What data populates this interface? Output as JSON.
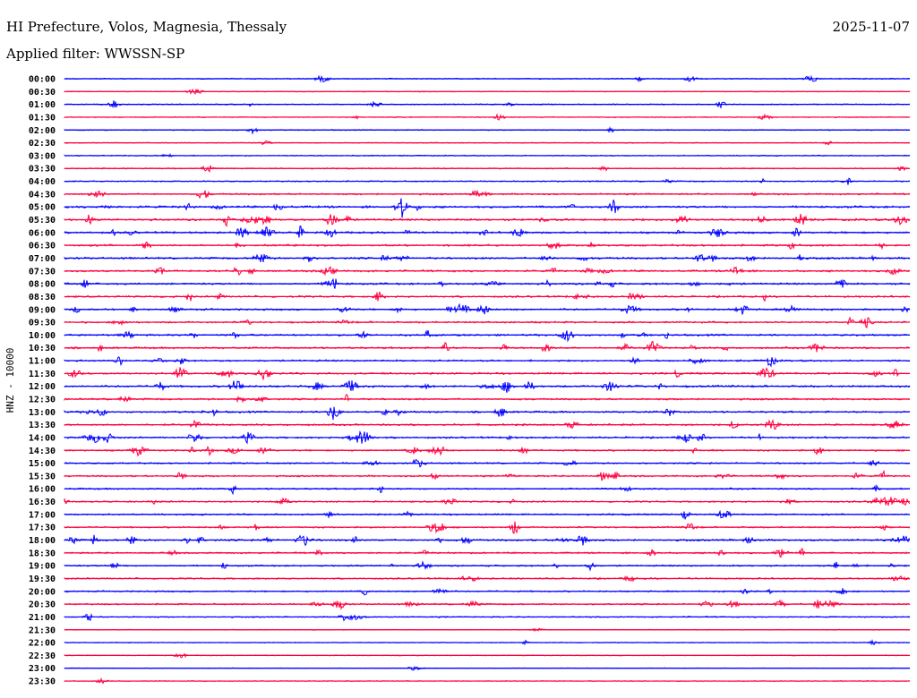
{
  "header": {
    "title": "HI Prefecture, Volos, Magnesia, Thessaly",
    "date": "2025-11-07",
    "filter": "Applied filter: WWSSN-SP"
  },
  "chart_data": {
    "type": "line",
    "title": "HI Prefecture, Volos, Magnesia, Thessaly",
    "ylabel": "HNZ - 10000",
    "colors": [
      "#0000ff",
      "#ff0040"
    ],
    "rows": [
      "00:00",
      "00:30",
      "01:00",
      "01:30",
      "02:00",
      "02:30",
      "03:00",
      "03:30",
      "04:00",
      "04:30",
      "05:00",
      "05:30",
      "06:00",
      "06:30",
      "07:00",
      "07:30",
      "08:00",
      "08:30",
      "09:00",
      "09:30",
      "10:00",
      "10:30",
      "11:00",
      "11:30",
      "12:00",
      "12:30",
      "13:00",
      "13:30",
      "14:00",
      "14:30",
      "15:00",
      "15:30",
      "16:00",
      "16:30",
      "17:00",
      "17:30",
      "18:00",
      "18:30",
      "19:00",
      "19:30",
      "20:00",
      "20:30",
      "21:00",
      "21:30",
      "22:00",
      "22:30",
      "23:00",
      "23:30"
    ],
    "activity": [
      0.3,
      0.15,
      0.3,
      0.2,
      0.25,
      0.2,
      0.3,
      0.35,
      0.4,
      0.6,
      0.9,
      0.9,
      0.8,
      0.85,
      0.8,
      0.8,
      0.8,
      0.75,
      0.75,
      0.7,
      0.75,
      0.75,
      0.7,
      0.8,
      0.85,
      0.7,
      0.75,
      0.75,
      0.7,
      0.65,
      0.6,
      0.6,
      0.6,
      0.6,
      0.6,
      0.6,
      0.75,
      0.6,
      0.6,
      0.6,
      0.55,
      0.55,
      0.35,
      0.1,
      0.15,
      0.1,
      0.1,
      0.1
    ]
  }
}
